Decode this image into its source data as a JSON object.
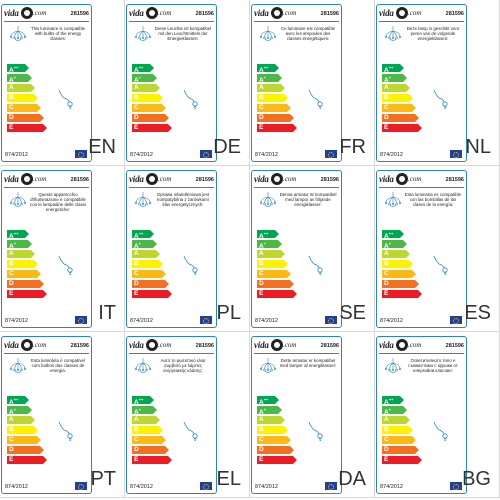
{
  "logo": {
    "text_left": "vida",
    "text_right": ".com"
  },
  "product_code": "281596",
  "regulation": "874/2012",
  "energy_classes": [
    {
      "label": "A",
      "sup": "++",
      "color": "#00a651"
    },
    {
      "label": "A",
      "sup": "+",
      "color": "#4cb848"
    },
    {
      "label": "A",
      "sup": "",
      "color": "#bed630"
    },
    {
      "label": "B",
      "sup": "",
      "color": "#fff200"
    },
    {
      "label": "C",
      "sup": "",
      "color": "#fdb913"
    },
    {
      "label": "D",
      "sup": "",
      "color": "#f37021"
    },
    {
      "label": "E",
      "sup": "",
      "color": "#ed1c24"
    }
  ],
  "panels": [
    {
      "lang": "EN",
      "text": "This luminaire is compatible with bulbs of the energy classes:"
    },
    {
      "lang": "DE",
      "text": "Diese Leuchte ist kompatibel mit den Leuchtmitteln der Energieklassen:"
    },
    {
      "lang": "FR",
      "text": "Ce luminaire est compatible avec les ampoules des classes énergétiques:"
    },
    {
      "lang": "NL",
      "text": "Deze lamp is geschikt voor peren van de volgende energieklassen:"
    },
    {
      "lang": "IT",
      "text": "Questo apparecchio d'illuminazione è compatibile con le lampadine delle classi energetiche:"
    },
    {
      "lang": "PL",
      "text": "Oprawa oświetleniowa jest kompatybilna z żarówkami klas energetycznych:"
    },
    {
      "lang": "SE",
      "text": "Denna armatur är kompatibel med lampor av följande energiklasser:"
    },
    {
      "lang": "ES",
      "text": "Esta luminaria es compatible con las bombillas de las clases de la energía:"
    },
    {
      "lang": "PT",
      "text": "Esta luminária é compatível com bulbos das classes de energia:"
    },
    {
      "lang": "EL",
      "text": "Αυτό το φωτιστικό είναι συμβατό με λάμπες ενεργειακής κλάσης:"
    },
    {
      "lang": "DA",
      "text": "Dette armatur er kompatibel med lamper af energiklasser:"
    },
    {
      "lang": "BG",
      "text": "Осветителното тяло е съвместимо с крушки от енергийни класове:"
    }
  ]
}
